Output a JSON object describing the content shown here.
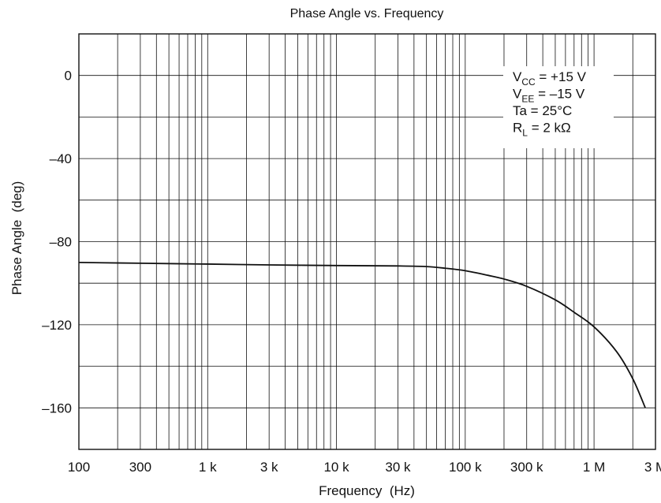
{
  "chart_data": {
    "type": "line",
    "title": "Phase Angle vs. Frequency",
    "xlabel": "Frequency  (Hz)",
    "ylabel": "Phase Angle  (deg)",
    "xscale": "log",
    "xlim": [
      100,
      3000000
    ],
    "ylim": [
      -180,
      20
    ],
    "grid": true,
    "x_ticks": [
      {
        "value": 100,
        "label": "100"
      },
      {
        "value": 300,
        "label": "300"
      },
      {
        "value": 1000,
        "label": "1 k"
      },
      {
        "value": 3000,
        "label": "3 k"
      },
      {
        "value": 10000,
        "label": "10 k"
      },
      {
        "value": 30000,
        "label": "30 k"
      },
      {
        "value": 100000,
        "label": "100 k"
      },
      {
        "value": 300000,
        "label": "300 k"
      },
      {
        "value": 1000000,
        "label": "1 M"
      },
      {
        "value": 3000000,
        "label": "3 M"
      }
    ],
    "y_ticks": [
      {
        "value": 0,
        "label": "0"
      },
      {
        "value": -40,
        "label": "–40"
      },
      {
        "value": -80,
        "label": "–80"
      },
      {
        "value": -120,
        "label": "–120"
      },
      {
        "value": -160,
        "label": "–160"
      }
    ],
    "y_minor_gridlines": [
      20,
      -20,
      -60,
      -100,
      -140,
      -180
    ],
    "series": [
      {
        "x": [
          100,
          300,
          1000,
          3000,
          10000,
          30000,
          50000,
          70000,
          100000,
          150000,
          200000,
          300000,
          500000,
          700000,
          1000000,
          1500000,
          2000000,
          2500000
        ],
        "y": [
          -90,
          -90.4,
          -90.8,
          -91.2,
          -91.5,
          -91.7,
          -92,
          -92.8,
          -94,
          -96.2,
          -98,
          -101.5,
          -108,
          -114,
          -121,
          -133,
          -146,
          -160
        ]
      }
    ],
    "annotation": {
      "lines": [
        {
          "main": "V",
          "sub": "CC",
          "rest": " = +15 V"
        },
        {
          "main": "V",
          "sub": "EE",
          "rest": " = –15 V"
        },
        {
          "main": "Ta = 25°C",
          "sub": "",
          "rest": ""
        },
        {
          "main": "R",
          "sub": "L",
          "rest": " = 2 kΩ"
        }
      ]
    }
  }
}
